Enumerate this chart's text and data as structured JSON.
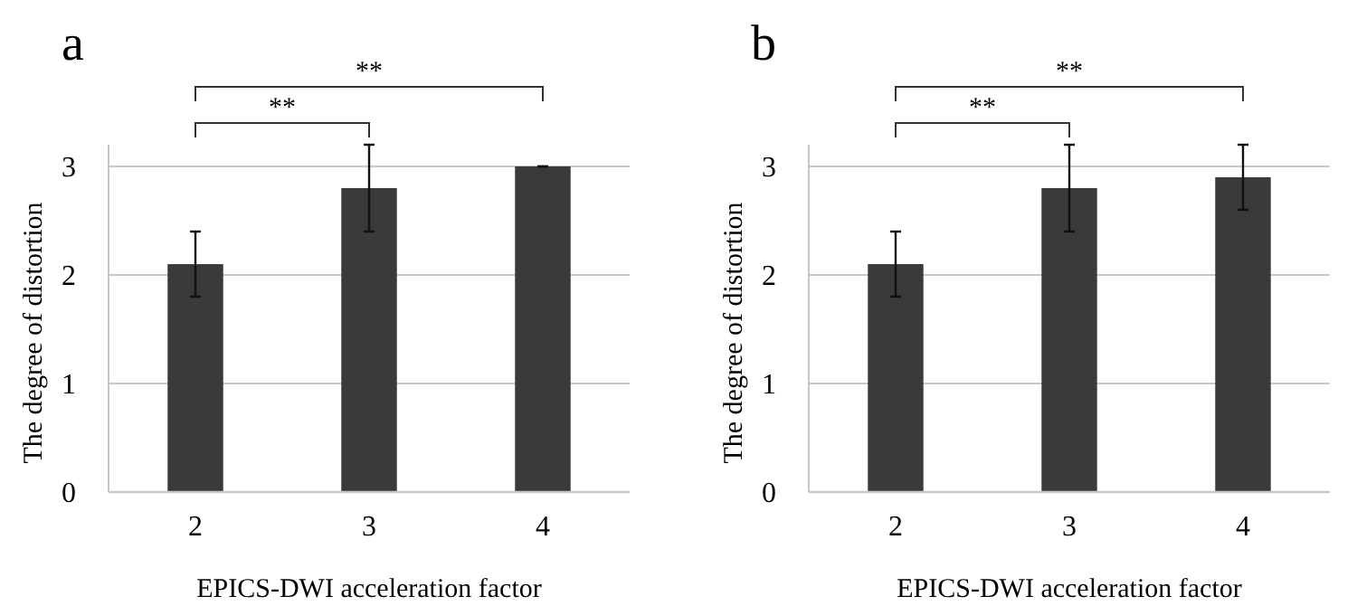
{
  "chart_data": [
    {
      "type": "bar",
      "title": "a",
      "xlabel": "EPICS-DWI acceleration factor",
      "ylabel": "The degree of distortion",
      "categories": [
        "2",
        "3",
        "4"
      ],
      "values": [
        2.1,
        2.8,
        3.0
      ],
      "errors": [
        0.3,
        0.4,
        0
      ],
      "color": "#3a3a3a",
      "ylim": [
        0,
        3.2
      ],
      "yticks": [
        0,
        1,
        2,
        3
      ],
      "grid": "y",
      "annotations": [
        "**",
        "**"
      ]
    },
    {
      "type": "bar",
      "title": "b",
      "xlabel": "EPICS-DWI acceleration factor",
      "ylabel": "The degree of distortion",
      "categories": [
        "2",
        "3",
        "4"
      ],
      "values": [
        2.1,
        2.8,
        2.9
      ],
      "errors": [
        0.3,
        0.4,
        0.3
      ],
      "color": "#3a3a3a",
      "ylim": [
        0,
        3.2
      ],
      "yticks": [
        0,
        1,
        2,
        3
      ],
      "grid": "y",
      "annotations": [
        "**",
        "**"
      ]
    }
  ]
}
